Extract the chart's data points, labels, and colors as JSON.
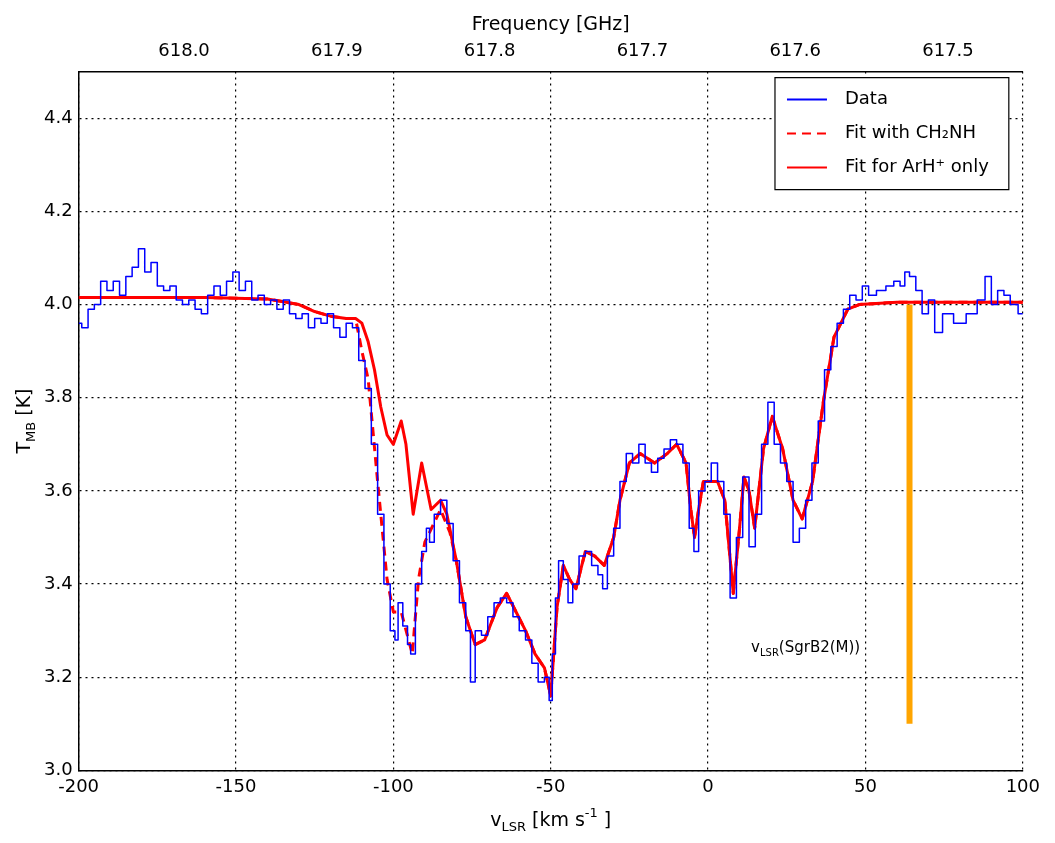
{
  "chart_data": {
    "type": "line",
    "xlabel": "v$_{LSR}$ [km s$^{-1}$ ]",
    "ylabel": "T$_{MB}$ [K]",
    "x2label": "Frequency [GHz]",
    "xlim": [
      -200,
      100
    ],
    "xticks": [
      -200,
      -150,
      -100,
      -50,
      0,
      50,
      100
    ],
    "ylim": [
      3.0,
      4.5
    ],
    "yticks": [
      {
        "value": 3,
        "label": "3.0"
      },
      3.2,
      3.4,
      3.6,
      3.8,
      {
        "value": 4,
        "label": "4.0"
      },
      4.2,
      4.4
    ],
    "x2lim": [
      618.069,
      617.451
    ],
    "x2ticks": [
      {
        "value": 618,
        "label": "618.0"
      },
      617.9,
      617.8,
      617.7,
      617.6,
      617.5
    ],
    "grid": true,
    "legend": "top right",
    "marker": "none",
    "annotations": [
      "v$_{LSR}$(SgrB2(M))"
    ],
    "series": [
      {
        "name": "Data",
        "type": "step",
        "color": "#0000ff",
        "x": [
          -200,
          -198,
          -196,
          -194,
          -192,
          -190,
          -188,
          -186,
          -184,
          -182,
          -180,
          -178,
          -176,
          -174,
          -172,
          -170,
          -168,
          -166,
          -164,
          -162,
          -160,
          -158,
          -156,
          -154,
          -152,
          -150,
          -148,
          -146,
          -144,
          -142,
          -140,
          -138,
          -136,
          -134,
          -132,
          -130,
          -128,
          -126,
          -124,
          -122,
          -120,
          -118,
          -116,
          -114,
          -112,
          -110,
          -108,
          -106,
          -104,
          -102,
          -100,
          -99,
          -98,
          -96,
          -95,
          -94,
          -92,
          -90,
          -89,
          -88,
          -86,
          -84,
          -82,
          -80,
          -78,
          -76,
          -75,
          -73,
          -71,
          -69,
          -67,
          -65,
          -63,
          -61,
          -59,
          -57,
          -55,
          -53,
          -51,
          -50,
          -49,
          -48,
          -47,
          -45,
          -44,
          -42,
          -40,
          -38,
          -36,
          -34,
          -33,
          -31,
          -29,
          -27,
          -25,
          -23,
          -21,
          -19,
          -17,
          -15,
          -13,
          -11,
          -9,
          -7,
          -5,
          -4,
          -2,
          0,
          2,
          4,
          6,
          8,
          10,
          12,
          14,
          16,
          18,
          20,
          22,
          24,
          26,
          28,
          30,
          32,
          34,
          36,
          38,
          40,
          42,
          44,
          46,
          48,
          50,
          52,
          55,
          58,
          60,
          62,
          63,
          65,
          67,
          69,
          71,
          73,
          76,
          80,
          84,
          87,
          89,
          91,
          93,
          95,
          97,
          100
        ],
        "values": [
          3.96,
          3.95,
          3.99,
          4.0,
          4.05,
          4.03,
          4.05,
          4.02,
          4.06,
          4.08,
          4.12,
          4.07,
          4.09,
          4.04,
          4.03,
          4.04,
          4.01,
          4.0,
          4.01,
          3.99,
          3.98,
          4.02,
          4.04,
          4.02,
          4.05,
          4.07,
          4.03,
          4.05,
          4.01,
          4.02,
          4.0,
          4.01,
          3.99,
          4.01,
          3.98,
          3.97,
          3.98,
          3.95,
          3.97,
          3.96,
          3.98,
          3.95,
          3.93,
          3.96,
          3.95,
          3.88,
          3.82,
          3.7,
          3.55,
          3.4,
          3.3,
          3.28,
          3.36,
          3.31,
          3.27,
          3.25,
          3.4,
          3.47,
          3.52,
          3.49,
          3.55,
          3.58,
          3.53,
          3.45,
          3.36,
          3.3,
          3.19,
          3.3,
          3.29,
          3.33,
          3.36,
          3.37,
          3.36,
          3.33,
          3.3,
          3.28,
          3.23,
          3.19,
          3.2,
          3.15,
          3.25,
          3.37,
          3.45,
          3.41,
          3.36,
          3.4,
          3.46,
          3.47,
          3.44,
          3.42,
          3.39,
          3.46,
          3.52,
          3.62,
          3.68,
          3.66,
          3.7,
          3.66,
          3.64,
          3.67,
          3.69,
          3.71,
          3.7,
          3.66,
          3.52,
          3.47,
          3.6,
          3.62,
          3.66,
          3.62,
          3.55,
          3.37,
          3.5,
          3.63,
          3.48,
          3.55,
          3.7,
          3.79,
          3.7,
          3.66,
          3.62,
          3.49,
          3.52,
          3.58,
          3.66,
          3.75,
          3.86,
          3.91,
          3.96,
          3.99,
          4.02,
          4.01,
          4.04,
          4.02,
          4.03,
          4.04,
          4.05,
          4.04,
          4.07,
          4.06,
          4.03,
          3.98,
          4.01,
          3.94,
          3.98,
          3.96,
          3.98,
          4.01,
          4.06,
          4.0,
          4.03,
          4.02,
          4.0,
          3.98
        ]
      },
      {
        "name": "Fit with CH₂NH",
        "line_style": "dashed",
        "color": "#ff0000",
        "x": [
          -200,
          -180,
          -160,
          -140,
          -130,
          -125,
          -120,
          -115,
          -112,
          -110,
          -108,
          -105,
          -102,
          -100,
          -97.5,
          -94,
          -92,
          -90,
          -85,
          -82,
          -80,
          -77,
          -74,
          -71,
          -67,
          -64,
          -61,
          -58,
          -55,
          -52,
          -50,
          -48,
          -46,
          -44,
          -42,
          -39,
          -36,
          -33,
          -30,
          -28,
          -25,
          -21.6,
          -17,
          -13,
          -10,
          -7,
          -5.5,
          -4.3,
          -3,
          -1.5,
          3,
          5.3,
          8,
          10,
          11.4,
          13,
          14.8,
          17.6,
          20.4,
          23.7,
          27,
          29.9,
          33.2,
          36.6,
          40,
          44.4,
          48,
          60,
          80,
          100
        ],
        "values": [
          4.015,
          4.015,
          4.015,
          4.012,
          4.0,
          3.985,
          3.975,
          3.97,
          3.97,
          3.9,
          3.84,
          3.62,
          3.41,
          3.34,
          3.34,
          3.25,
          3.41,
          3.49,
          3.56,
          3.51,
          3.45,
          3.33,
          3.27,
          3.28,
          3.35,
          3.38,
          3.34,
          3.3,
          3.25,
          3.22,
          3.16,
          3.35,
          3.44,
          3.41,
          3.39,
          3.47,
          3.46,
          3.44,
          3.5,
          3.58,
          3.66,
          3.68,
          3.66,
          3.68,
          3.7,
          3.66,
          3.56,
          3.5,
          3.56,
          3.62,
          3.62,
          3.58,
          3.38,
          3.52,
          3.63,
          3.6,
          3.52,
          3.69,
          3.76,
          3.69,
          3.58,
          3.54,
          3.62,
          3.79,
          3.93,
          3.99,
          4.0,
          4.005,
          4.005,
          4.005
        ]
      },
      {
        "name": "Fit for ArH⁺ only",
        "line_style": "solid",
        "color": "#ff0000",
        "x": [
          -200,
          -180,
          -160,
          -140,
          -130,
          -125,
          -120,
          -115,
          -112,
          -110,
          -108,
          -106,
          -104,
          -102,
          -100,
          -97.5,
          -96,
          -93.7,
          -91,
          -88,
          -85,
          -83,
          -80,
          -77,
          -74,
          -71,
          -67,
          -64,
          -61,
          -58,
          -55,
          -52,
          -50,
          -48,
          -46,
          -44,
          -42,
          -39,
          -36,
          -33,
          -30,
          -28,
          -25,
          -21.6,
          -17,
          -13,
          -10,
          -7,
          -5.5,
          -4.3,
          -3,
          -1.5,
          3,
          5.3,
          8,
          10,
          11.4,
          13,
          14.8,
          17.6,
          20.4,
          23.7,
          27,
          29.9,
          33.2,
          36.6,
          40,
          44.4,
          48,
          60,
          80,
          100
        ],
        "values": [
          4.015,
          4.015,
          4.015,
          4.012,
          4.0,
          3.985,
          3.975,
          3.97,
          3.97,
          3.96,
          3.92,
          3.86,
          3.78,
          3.72,
          3.7,
          3.75,
          3.7,
          3.55,
          3.66,
          3.56,
          3.58,
          3.55,
          3.45,
          3.33,
          3.27,
          3.28,
          3.35,
          3.38,
          3.34,
          3.3,
          3.25,
          3.22,
          3.16,
          3.35,
          3.44,
          3.41,
          3.39,
          3.47,
          3.46,
          3.44,
          3.5,
          3.58,
          3.66,
          3.68,
          3.66,
          3.68,
          3.7,
          3.66,
          3.56,
          3.5,
          3.56,
          3.62,
          3.62,
          3.58,
          3.38,
          3.52,
          3.63,
          3.6,
          3.52,
          3.69,
          3.76,
          3.69,
          3.58,
          3.54,
          3.62,
          3.79,
          3.93,
          3.99,
          4.0,
          4.005,
          4.005,
          4.005
        ]
      },
      {
        "color": "#ffa500",
        "x": [
          64,
          64
        ],
        "values": [
          3.1,
          4.0
        ]
      }
    ]
  }
}
